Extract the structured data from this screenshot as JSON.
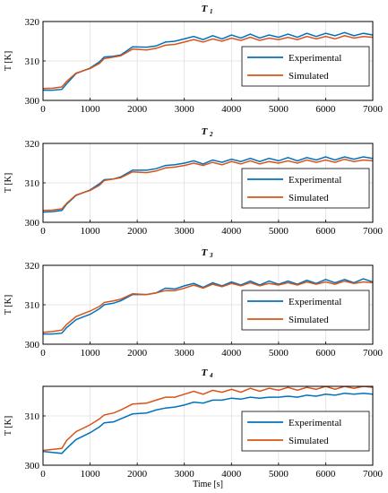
{
  "chart_data": [
    {
      "type": "line",
      "title": "T",
      "title_sub": "1",
      "ylabel": "T [K]",
      "xlabel": "",
      "xlim": [
        0,
        7000
      ],
      "ylim": [
        300,
        320
      ],
      "xticks": [
        0,
        1000,
        2000,
        3000,
        4000,
        5000,
        6000,
        7000
      ],
      "yticks": [
        300,
        310,
        320
      ],
      "grid": true,
      "legend": "right-middle",
      "series": [
        {
          "name": "Experimental",
          "color": "#0072BD",
          "x": [
            0,
            200,
            400,
            500,
            700,
            1000,
            1200,
            1300,
            1500,
            1650,
            1900,
            2200,
            2400,
            2600,
            2800,
            3000,
            3200,
            3400,
            3600,
            3800,
            4000,
            4200,
            4400,
            4600,
            4800,
            5000,
            5200,
            5400,
            5600,
            5800,
            6000,
            6200,
            6400,
            6600,
            6800,
            7000
          ],
          "y": [
            302.6,
            302.6,
            302.8,
            304.2,
            306.8,
            308.2,
            309.8,
            311.0,
            311.2,
            311.5,
            313.6,
            313.5,
            313.8,
            314.8,
            315.0,
            315.6,
            316.2,
            315.4,
            316.4,
            315.6,
            316.6,
            315.8,
            316.8,
            315.8,
            316.6,
            316.0,
            316.8,
            316.0,
            317.0,
            316.2,
            317.0,
            316.4,
            317.2,
            316.4,
            317.0,
            316.6
          ]
        },
        {
          "name": "Simulated",
          "color": "#D95319",
          "x": [
            0,
            200,
            400,
            500,
            700,
            1000,
            1200,
            1300,
            1500,
            1650,
            1900,
            2200,
            2400,
            2600,
            2800,
            3000,
            3200,
            3400,
            3600,
            3800,
            4000,
            4200,
            4400,
            4600,
            4800,
            5000,
            5200,
            5400,
            5600,
            5800,
            6000,
            6200,
            6400,
            6600,
            6800,
            7000
          ],
          "y": [
            303.0,
            303.1,
            303.4,
            304.8,
            306.9,
            308.1,
            309.4,
            310.6,
            311.0,
            311.3,
            313.0,
            312.8,
            313.2,
            314.0,
            314.2,
            314.8,
            315.4,
            314.8,
            315.6,
            315.0,
            315.8,
            315.2,
            316.0,
            315.2,
            315.8,
            315.4,
            316.0,
            315.4,
            316.2,
            315.6,
            316.2,
            315.6,
            316.4,
            315.8,
            316.2,
            316.0
          ]
        }
      ]
    },
    {
      "type": "line",
      "title": "T",
      "title_sub": "2",
      "ylabel": "T [K]",
      "xlabel": "",
      "xlim": [
        0,
        7000
      ],
      "ylim": [
        300,
        320
      ],
      "xticks": [
        0,
        1000,
        2000,
        3000,
        4000,
        5000,
        6000,
        7000
      ],
      "yticks": [
        300,
        310,
        320
      ],
      "grid": true,
      "legend": "right-middle",
      "series": [
        {
          "name": "Experimental",
          "color": "#0072BD",
          "x": [
            0,
            200,
            400,
            500,
            700,
            1000,
            1200,
            1300,
            1500,
            1650,
            1900,
            2200,
            2400,
            2600,
            2800,
            3000,
            3200,
            3400,
            3600,
            3800,
            4000,
            4200,
            4400,
            4600,
            4800,
            5000,
            5200,
            5400,
            5600,
            5800,
            6000,
            6200,
            6400,
            6600,
            6800,
            7000
          ],
          "y": [
            302.6,
            302.7,
            303.0,
            304.6,
            306.8,
            308.2,
            309.8,
            310.8,
            311.0,
            311.5,
            313.2,
            313.2,
            313.6,
            314.4,
            314.6,
            315.0,
            315.6,
            314.8,
            315.8,
            315.2,
            316.0,
            315.4,
            316.2,
            315.4,
            316.2,
            315.6,
            316.4,
            315.6,
            316.4,
            315.8,
            316.6,
            315.8,
            316.6,
            316.0,
            316.6,
            316.2
          ]
        },
        {
          "name": "Simulated",
          "color": "#D95319",
          "x": [
            0,
            200,
            400,
            500,
            700,
            1000,
            1200,
            1300,
            1500,
            1650,
            1900,
            2200,
            2400,
            2600,
            2800,
            3000,
            3200,
            3400,
            3600,
            3800,
            4000,
            4200,
            4400,
            4600,
            4800,
            5000,
            5200,
            5400,
            5600,
            5800,
            6000,
            6200,
            6400,
            6600,
            6800,
            7000
          ],
          "y": [
            303.0,
            303.1,
            303.4,
            304.8,
            306.9,
            308.1,
            309.4,
            310.6,
            311.0,
            311.3,
            312.8,
            312.6,
            313.0,
            313.8,
            314.0,
            314.4,
            315.0,
            314.4,
            315.2,
            314.6,
            315.4,
            314.8,
            315.6,
            314.8,
            315.4,
            315.0,
            315.6,
            315.0,
            315.8,
            315.2,
            315.8,
            315.2,
            316.0,
            315.4,
            315.8,
            315.6
          ]
        }
      ]
    },
    {
      "type": "line",
      "title": "T",
      "title_sub": "3",
      "ylabel": "T [K]",
      "xlabel": "",
      "xlim": [
        0,
        7000
      ],
      "ylim": [
        300,
        320
      ],
      "xticks": [
        0,
        1000,
        2000,
        3000,
        4000,
        5000,
        6000,
        7000
      ],
      "yticks": [
        300,
        310,
        320
      ],
      "grid": true,
      "legend": "right-middle",
      "series": [
        {
          "name": "Experimental",
          "color": "#0072BD",
          "x": [
            0,
            200,
            400,
            500,
            700,
            1000,
            1200,
            1300,
            1500,
            1650,
            1900,
            2200,
            2400,
            2600,
            2800,
            3000,
            3200,
            3400,
            3600,
            3800,
            4000,
            4200,
            4400,
            4600,
            4800,
            5000,
            5200,
            5400,
            5600,
            5800,
            6000,
            6200,
            6400,
            6600,
            6800,
            7000
          ],
          "y": [
            302.6,
            302.6,
            302.8,
            304.2,
            306.2,
            307.6,
            309.0,
            310.0,
            310.4,
            311.0,
            312.6,
            312.6,
            313.0,
            314.2,
            314.0,
            314.8,
            315.4,
            314.4,
            315.6,
            314.8,
            315.8,
            315.0,
            316.0,
            315.0,
            316.0,
            315.2,
            316.0,
            315.2,
            316.2,
            315.4,
            316.4,
            315.6,
            316.4,
            315.6,
            316.6,
            315.8
          ]
        },
        {
          "name": "Simulated",
          "color": "#D95319",
          "x": [
            0,
            200,
            400,
            500,
            700,
            1000,
            1200,
            1300,
            1500,
            1650,
            1900,
            2200,
            2400,
            2600,
            2800,
            3000,
            3200,
            3400,
            3600,
            3800,
            4000,
            4200,
            4400,
            4600,
            4800,
            5000,
            5200,
            5400,
            5600,
            5800,
            6000,
            6200,
            6400,
            6600,
            6800,
            7000
          ],
          "y": [
            303.0,
            303.2,
            303.6,
            305.0,
            307.0,
            308.4,
            309.6,
            310.6,
            311.0,
            311.4,
            312.8,
            312.6,
            313.0,
            313.6,
            313.6,
            314.2,
            315.0,
            314.2,
            315.2,
            314.6,
            315.4,
            314.8,
            315.6,
            314.8,
            315.4,
            315.0,
            315.6,
            315.0,
            315.8,
            315.2,
            315.8,
            315.2,
            316.0,
            315.4,
            315.8,
            315.6
          ]
        }
      ]
    },
    {
      "type": "line",
      "title": "T",
      "title_sub": "4",
      "ylabel": "T [K]",
      "xlabel": "Time [s]",
      "xlim": [
        0,
        7000
      ],
      "ylim": [
        300,
        316
      ],
      "xticks": [
        0,
        1000,
        2000,
        3000,
        4000,
        5000,
        6000,
        7000
      ],
      "yticks": [
        300,
        310
      ],
      "grid": true,
      "legend": "right-middle",
      "series": [
        {
          "name": "Experimental",
          "color": "#0072BD",
          "x": [
            0,
            200,
            400,
            500,
            700,
            1000,
            1200,
            1300,
            1500,
            1650,
            1900,
            2200,
            2400,
            2600,
            2800,
            3000,
            3200,
            3400,
            3600,
            3800,
            4000,
            4200,
            4400,
            4600,
            4800,
            5000,
            5200,
            5400,
            5600,
            5800,
            6000,
            6200,
            6400,
            6600,
            6800,
            7000
          ],
          "y": [
            302.8,
            302.6,
            302.4,
            303.4,
            305.2,
            306.6,
            307.8,
            308.6,
            308.8,
            309.4,
            310.4,
            310.6,
            311.2,
            311.6,
            311.8,
            312.2,
            312.8,
            312.6,
            313.2,
            313.2,
            313.6,
            313.4,
            313.8,
            313.6,
            313.8,
            313.8,
            314.0,
            313.8,
            314.2,
            314.0,
            314.4,
            314.2,
            314.6,
            314.4,
            314.6,
            314.4
          ]
        },
        {
          "name": "Simulated",
          "color": "#D95319",
          "x": [
            0,
            200,
            400,
            500,
            700,
            1000,
            1200,
            1300,
            1500,
            1650,
            1900,
            2200,
            2400,
            2600,
            2800,
            3000,
            3200,
            3400,
            3600,
            3800,
            4000,
            4200,
            4400,
            4600,
            4800,
            5000,
            5200,
            5400,
            5600,
            5800,
            6000,
            6200,
            6400,
            6600,
            6800,
            7000
          ],
          "y": [
            303.0,
            303.2,
            303.4,
            305.0,
            306.8,
            308.2,
            309.4,
            310.2,
            310.6,
            311.2,
            312.4,
            312.6,
            313.2,
            313.8,
            313.8,
            314.4,
            315.0,
            314.4,
            315.2,
            314.8,
            315.4,
            314.8,
            315.6,
            315.0,
            315.6,
            315.2,
            315.8,
            315.2,
            315.8,
            315.4,
            316.0,
            315.4,
            316.0,
            315.6,
            316.0,
            315.8
          ]
        }
      ]
    }
  ]
}
